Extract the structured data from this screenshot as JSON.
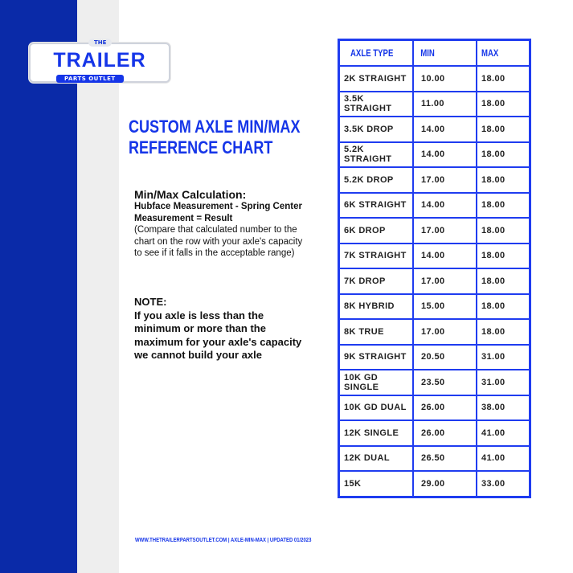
{
  "brand": {
    "the": "THE",
    "name": "TRAILER",
    "sub": "PARTS OUTLET"
  },
  "title_line1": "CUSTOM AXLE MIN/MAX",
  "title_line2": "REFERENCE CHART",
  "calc": {
    "heading": "Min/Max Calculation:",
    "formula": "Hubface Measurement - Spring Center Measurement = Result",
    "explanation": "(Compare that calculated number to the chart on the row with your axle's capacity to see if it falls in the acceptable range)"
  },
  "note": {
    "heading": "NOTE:",
    "text": "If you axle is less than the minimum or more than the maximum for your axle's capacity we cannot build your axle"
  },
  "footer": "WWW.THETRAILERPARTSOUTLET.COM   | AXLE-MIN-MAX | UPDATED 01/2023",
  "table": {
    "headers": [
      "AXLE TYPE",
      "MIN",
      "MAX"
    ],
    "rows": [
      [
        "2K STRAIGHT",
        "10.00",
        "18.00"
      ],
      [
        "3.5K STRAIGHT",
        "11.00",
        "18.00"
      ],
      [
        "3.5K DROP",
        "14.00",
        "18.00"
      ],
      [
        "5.2K STRAIGHT",
        "14.00",
        "18.00"
      ],
      [
        "5.2K DROP",
        "17.00",
        "18.00"
      ],
      [
        "6K STRAIGHT",
        "14.00",
        "18.00"
      ],
      [
        "6K DROP",
        "17.00",
        "18.00"
      ],
      [
        "7K STRAIGHT",
        "14.00",
        "18.00"
      ],
      [
        "7K DROP",
        "17.00",
        "18.00"
      ],
      [
        "8K HYBRID",
        "15.00",
        "18.00"
      ],
      [
        "8K TRUE",
        "17.00",
        "18.00"
      ],
      [
        "9K STRAIGHT",
        "20.50",
        "31.00"
      ],
      [
        "10K GD SINGLE",
        "23.50",
        "31.00"
      ],
      [
        "10K GD DUAL",
        "26.00",
        "38.00"
      ],
      [
        "12K SINGLE",
        "26.00",
        "41.00"
      ],
      [
        "12K DUAL",
        "26.50",
        "41.00"
      ],
      [
        "15K",
        "29.00",
        "33.00"
      ]
    ]
  },
  "colors": {
    "brand_blue": "#1535e8",
    "sidebar_blue": "#0a2aa8"
  }
}
